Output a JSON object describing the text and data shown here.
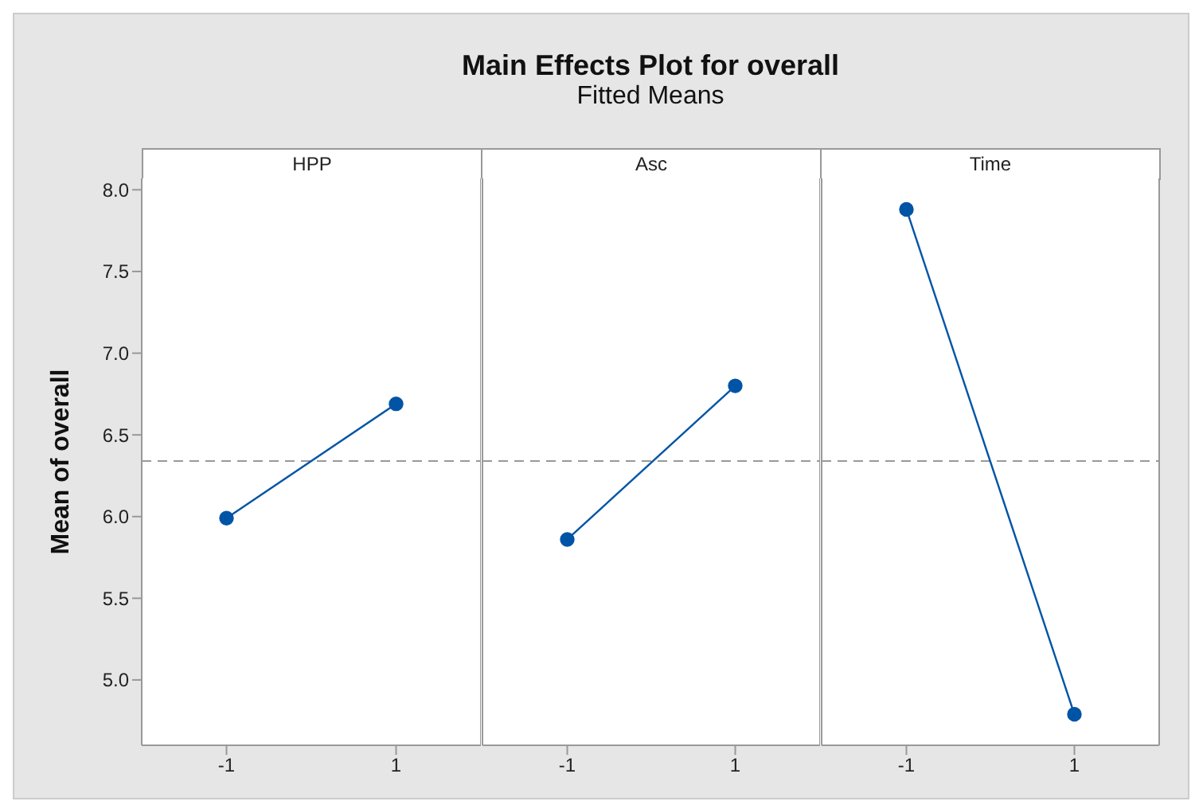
{
  "chart_data": [
    {
      "type": "line",
      "ylabel": "Mean of overall",
      "xlabel": "HPP",
      "categories": [
        "-1",
        "1"
      ],
      "marker": "circle",
      "line_style": "solid",
      "series": [
        {
          "color": "#0054a6",
          "values": [
            5.99,
            6.69
          ]
        }
      ],
      "ylim": [
        4.6,
        8.07
      ],
      "yticks": [
        {
          "value": 5,
          "label": "5.0"
        },
        {
          "value": 5.5,
          "label": "5.5"
        },
        {
          "value": 6,
          "label": "6.0"
        },
        {
          "value": 6.5,
          "label": "6.5"
        },
        {
          "value": 7,
          "label": "7.0"
        },
        {
          "value": 7.5,
          "label": "7.5"
        },
        {
          "value": 8,
          "label": "8.0"
        }
      ],
      "ref_lines": [
        {
          "axis": "y",
          "value": 6.34,
          "color": "#999999",
          "line_style": "dashed"
        }
      ]
    },
    {
      "type": "line",
      "title": "Main Effects Plot for overall",
      "subtitle": "Fitted Means",
      "xlabel": "Asc",
      "categories": [
        "-1",
        "1"
      ],
      "marker": "circle",
      "line_style": "solid",
      "tick_labels": "x",
      "series": [
        {
          "color": "#0054a6",
          "values": [
            5.86,
            6.8
          ]
        }
      ],
      "ylim": [
        4.6,
        8.07
      ],
      "ref_lines": [
        {
          "axis": "y",
          "value": 6.34,
          "color": "#999999",
          "line_style": "dashed"
        }
      ]
    },
    {
      "type": "line",
      "xlabel": "Time",
      "categories": [
        "-1",
        "1"
      ],
      "marker": "circle",
      "line_style": "solid",
      "tick_labels": "x",
      "series": [
        {
          "color": "#0054a6",
          "values": [
            7.88,
            4.79
          ]
        }
      ],
      "ylim": [
        4.6,
        8.07
      ],
      "ref_lines": [
        {
          "axis": "y",
          "value": 6.34,
          "color": "#999999",
          "line_style": "dashed"
        }
      ]
    }
  ]
}
